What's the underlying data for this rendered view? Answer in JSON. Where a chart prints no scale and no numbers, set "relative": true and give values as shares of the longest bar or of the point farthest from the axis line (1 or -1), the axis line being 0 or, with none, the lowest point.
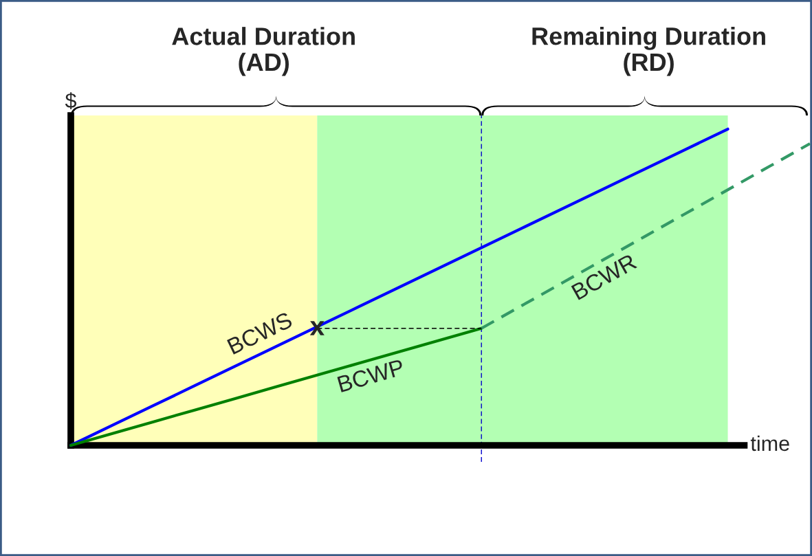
{
  "chart_data": {
    "type": "line",
    "relative": true,
    "xlabel": "time",
    "ylabel": "$",
    "categories": [
      null,
      null,
      null,
      null,
      null,
      null,
      null,
      null,
      null,
      null,
      null,
      null,
      null,
      null,
      null,
      null,
      null,
      null,
      null
    ],
    "annotations": [
      "Actual Duration\n(AD)",
      "Remaining Duration\n(RD)",
      {
        "text": "x",
        "y": 0.37
      }
    ],
    "legend": false,
    "series": [
      {
        "name": "BCWS",
        "color": "#0000ff",
        "values": [
          0,
          0.0625,
          0.125,
          0.1875,
          0.25,
          0.3125,
          0.375,
          0.4375,
          0.5,
          0.5625,
          0.625,
          0.6875,
          0.75,
          0.8125,
          0.875,
          0.9375,
          1,
          null,
          null
        ]
      },
      {
        "name": "BCWP",
        "color": "#008000",
        "values": [
          0,
          0.037,
          0.074,
          0.111,
          0.148,
          0.185,
          0.222,
          0.259,
          0.296,
          0.333,
          0.37,
          null,
          null,
          null,
          null,
          null,
          null,
          null,
          null
        ]
      },
      {
        "name": "BCWR",
        "color": "#339966",
        "line_style": "dashed",
        "values": [
          null,
          null,
          null,
          null,
          null,
          null,
          null,
          null,
          null,
          null,
          0.37,
          0.443,
          0.516,
          0.589,
          0.662,
          0.735,
          0.808,
          0.881,
          0.954
        ]
      },
      {
        "color": "#000000",
        "line_style": "dashed",
        "values": [
          null,
          null,
          null,
          null,
          null,
          null,
          0.37,
          0.37,
          0.37,
          0.37,
          0.37,
          null,
          null,
          null,
          null,
          null,
          null,
          null,
          null
        ]
      }
    ]
  }
}
